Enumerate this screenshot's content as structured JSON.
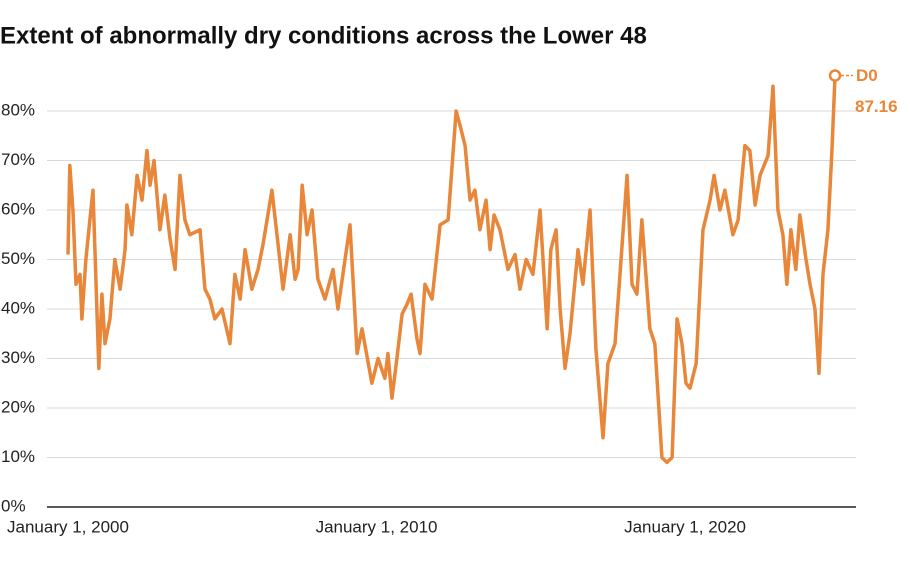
{
  "chart_data": {
    "type": "line",
    "title": "Extent of abnormally dry conditions across the Lower 48",
    "x": [
      2000.0,
      2000.06,
      2000.16,
      2000.26,
      2000.39,
      2000.45,
      2000.58,
      2000.71,
      2000.81,
      2000.91,
      2001.0,
      2001.1,
      2001.2,
      2001.36,
      2001.52,
      2001.69,
      2001.85,
      2001.91,
      2002.07,
      2002.24,
      2002.4,
      2002.56,
      2002.66,
      2002.79,
      2002.98,
      2003.14,
      2003.31,
      2003.47,
      2003.63,
      2003.79,
      2003.95,
      2004.28,
      2004.44,
      2004.6,
      2004.76,
      2004.99,
      2005.25,
      2005.41,
      2005.58,
      2005.74,
      2005.96,
      2006.16,
      2006.32,
      2006.61,
      2006.81,
      2006.97,
      2007.2,
      2007.36,
      2007.46,
      2007.59,
      2007.75,
      2007.91,
      2008.1,
      2008.33,
      2008.59,
      2008.75,
      2009.14,
      2009.37,
      2009.53,
      2009.85,
      2010.05,
      2010.27,
      2010.37,
      2010.5,
      2010.66,
      2010.83,
      2010.99,
      2011.12,
      2011.31,
      2011.41,
      2011.57,
      2011.8,
      2012.06,
      2012.32,
      2012.58,
      2012.71,
      2012.87,
      2013.03,
      2013.19,
      2013.35,
      2013.55,
      2013.68,
      2013.81,
      2014.0,
      2014.26,
      2014.49,
      2014.65,
      2014.85,
      2015.07,
      2015.3,
      2015.53,
      2015.65,
      2015.82,
      2015.95,
      2016.11,
      2016.27,
      2016.53,
      2016.69,
      2016.92,
      2017.11,
      2017.34,
      2017.5,
      2017.73,
      2017.96,
      2018.12,
      2018.28,
      2018.44,
      2018.6,
      2018.86,
      2019.02,
      2019.25,
      2019.41,
      2019.58,
      2019.74,
      2019.9,
      2020.03,
      2020.16,
      2020.36,
      2020.58,
      2020.81,
      2020.94,
      2021.13,
      2021.29,
      2021.55,
      2021.72,
      2021.94,
      2022.1,
      2022.27,
      2022.43,
      2022.69,
      2022.85,
      2023.01,
      2023.17,
      2023.3,
      2023.43,
      2023.59,
      2023.72,
      2023.92,
      2024.05,
      2024.21,
      2024.34,
      2024.47,
      2024.63,
      2024.76,
      2024.86
    ],
    "series": [
      {
        "name": "D0",
        "color": "#e8863a",
        "values": [
          51,
          69,
          60,
          45,
          47,
          38,
          50,
          58,
          64,
          45,
          28,
          43,
          33,
          38,
          50,
          44,
          52,
          61,
          55,
          67,
          62,
          72,
          65,
          70,
          56,
          63,
          54,
          48,
          67,
          58,
          55,
          56,
          44,
          42,
          38,
          40,
          33,
          47,
          42,
          52,
          44,
          48,
          53,
          64,
          53,
          44,
          55,
          46,
          48,
          65,
          55,
          60,
          46,
          42,
          48,
          40,
          57,
          31,
          36,
          25,
          30,
          26,
          31,
          22,
          30,
          39,
          41,
          43,
          34,
          31,
          45,
          42,
          57,
          58,
          80,
          77,
          73,
          62,
          64,
          56,
          62,
          52,
          59,
          56,
          48,
          51,
          44,
          50,
          47,
          60,
          36,
          52,
          56,
          40,
          28,
          35,
          52,
          45,
          60,
          32,
          14,
          29,
          33,
          53,
          67,
          45,
          43,
          58,
          36,
          33,
          10,
          9,
          10,
          38,
          33,
          25,
          24,
          29,
          56,
          62,
          67,
          60,
          64,
          55,
          58,
          73,
          72,
          61,
          67,
          71,
          85,
          60,
          55,
          45,
          56,
          48,
          59,
          50,
          45,
          40,
          27,
          47,
          56,
          72,
          87.16
        ]
      }
    ],
    "xlim": [
      1999.32,
      2025.54
    ],
    "xticks": [
      {
        "value": 2000,
        "label": "January 1, 2000"
      },
      {
        "value": 2010,
        "label": "January 1, 2010"
      },
      {
        "value": 2020,
        "label": "January 1, 2020"
      }
    ],
    "ylim": [
      0,
      90
    ],
    "yticks": [
      {
        "value": 0,
        "label": "0%"
      },
      {
        "value": 10,
        "label": "10%"
      },
      {
        "value": 20,
        "label": "20%"
      },
      {
        "value": 30,
        "label": "30%"
      },
      {
        "value": 40,
        "label": "40%"
      },
      {
        "value": 50,
        "label": "50%"
      },
      {
        "value": 60,
        "label": "60%"
      },
      {
        "value": 70,
        "label": "70%"
      },
      {
        "value": 80,
        "label": "80%"
      }
    ],
    "grid": true
  }
}
